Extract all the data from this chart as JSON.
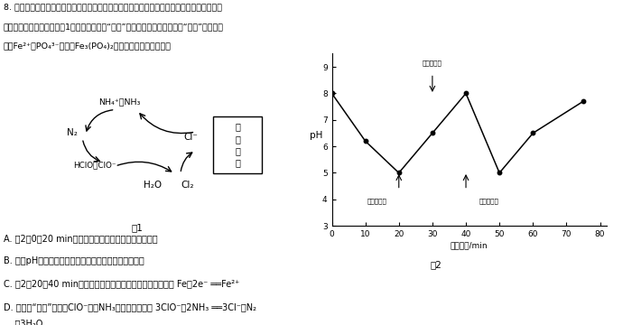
{
  "bg_color": "#ffffff",
  "text_color": "#000000",
  "line_color": "#000000",
  "q_line1": "8. 生活污水中的氮元素和磷元素主要以锄盐和磷酸盐的形式存在，可用电解法（铁、石墨作电",
  "q_line2": "极）去除。电解时，用如图1所示原理可进行“除氮”，翻转电源正负极可进行“除磷”，原理是",
  "q_line3": "利用Fe²⁺将PO₄³⁻转化为Fe₃(PO₄)₂沉淠。下列说法正确的是",
  "fig1_caption": "图1",
  "fig2_caption": "图2",
  "fig2_xlabel": "电解时间/min",
  "fig2_ylabel": "pH",
  "graph_xlim": [
    0,
    82
  ],
  "graph_ylim": [
    3,
    9.5
  ],
  "graph_xticks": [
    0,
    10,
    20,
    30,
    40,
    50,
    60,
    70,
    80
  ],
  "graph_yticks": [
    3,
    4,
    5,
    6,
    7,
    8,
    9
  ],
  "curve_x": [
    0,
    10,
    20,
    30,
    40,
    50,
    60,
    75
  ],
  "curve_y": [
    8.0,
    6.2,
    5.0,
    6.5,
    8.0,
    5.0,
    6.5,
    7.7
  ],
  "opt_A": "A. 图2中0～20 min内去除的是氮元素，此时石墨作阳极",
  "opt_B": "B. 溶液pH越小，有效氯浓度越大，氮元素的去除率越高",
  "opt_C": "C. 图2中20～40 min内去除的是磷元素，阳极的电极反应式为 Fe－2e⁻ ══Fe²⁺",
  "opt_D1": "D. 电解法“除氮”过程中ClO⁻氧化NH₃的离子方程式为 3ClO⁻＋2NH₃ ══3Cl⁻＋N₂",
  "opt_D2": "    ＋3H₂O",
  "ann1_text": "翻转正负极",
  "ann2_text": "翻转正负极",
  "ann3_text": "翻转正负极",
  "label_H2O": "H₂O",
  "label_Cl2": "Cl₂",
  "label_HClO": "HClO、ClO⁻",
  "label_N2": "N₂",
  "label_Cl": "Cl⁻",
  "label_NH4": "NH₄⁺、NH₃",
  "label_electrode": "石\n墨\n电\n极"
}
